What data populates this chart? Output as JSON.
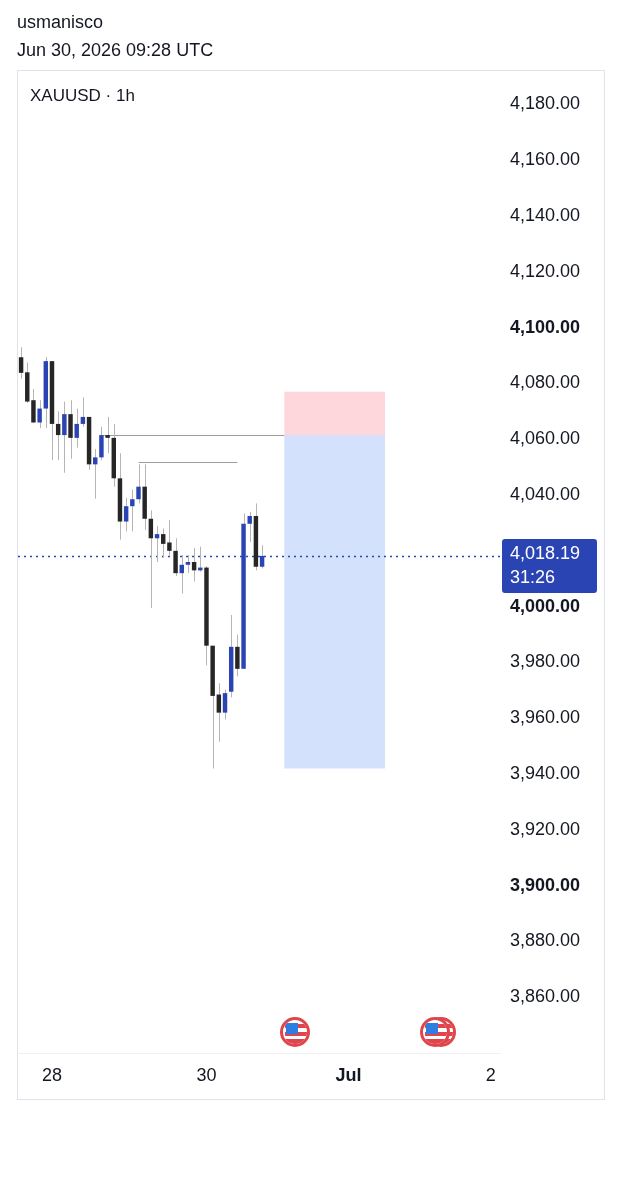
{
  "chart_data": {
    "type": "candlestick",
    "title": "XAUUSD · 1h",
    "annotations": [
      "usmanisco",
      "Jun 30, 2026 09:28 UTC",
      "31:26"
    ],
    "categories": [
      null,
      null,
      null,
      null,
      null,
      "28",
      null,
      null,
      null,
      null,
      null,
      null,
      null,
      null,
      null,
      null,
      null,
      null,
      null,
      null,
      null,
      null,
      null,
      null,
      null,
      null,
      null,
      null,
      null,
      null,
      "30",
      null,
      null,
      null,
      null,
      null,
      null,
      null,
      null,
      null,
      null,
      null,
      null,
      null,
      null,
      null,
      null,
      null,
      null,
      null,
      null,
      null,
      null,
      "Jul",
      null,
      null,
      null,
      null,
      null,
      null,
      null,
      null,
      null,
      null,
      null,
      null,
      null,
      null,
      null,
      null,
      null,
      null,
      null,
      null,
      null,
      null,
      "2",
      null
    ],
    "ohlc": [
      [
        4089.4,
        4093,
        4081.7,
        4083.8
      ],
      [
        4084,
        4087.5,
        4073,
        4073.5
      ],
      [
        4074,
        4078,
        4066,
        4066
      ],
      [
        4066,
        4074,
        4064,
        4071
      ],
      [
        4071,
        4089.5,
        4064,
        4088
      ],
      [
        4088,
        4088,
        4052.5,
        4065.5
      ],
      [
        4065.5,
        4070,
        4052.5,
        4061.5
      ],
      [
        4061.5,
        4073.5,
        4048,
        4069
      ],
      [
        4069,
        4074,
        4053,
        4060.5
      ],
      [
        4060.5,
        4071,
        4057,
        4065.5
      ],
      [
        4065.5,
        4075,
        4064.5,
        4068
      ],
      [
        4068,
        4068,
        4049,
        4051
      ],
      [
        4051,
        4056.5,
        4038.7,
        4053.5
      ],
      [
        4053.5,
        4064.5,
        4052.5,
        4061.5
      ],
      [
        4061.5,
        4068,
        4055,
        4060.5
      ],
      [
        4060.5,
        4065.5,
        4043,
        4046
      ],
      [
        4046,
        4055,
        4024,
        4030.5
      ],
      [
        4030.5,
        4039,
        4027,
        4036
      ],
      [
        4036,
        4042,
        4027,
        4038.5
      ],
      [
        4038.5,
        4051,
        4037,
        4043
      ],
      [
        4043,
        4051,
        4027.5,
        4031.5
      ],
      [
        4031.5,
        4034.5,
        3999.5,
        4024.5
      ],
      [
        4024.5,
        4029,
        4016,
        4026
      ],
      [
        4026,
        4028,
        4017.5,
        4022.5
      ],
      [
        4023,
        4031,
        4018.5,
        4020
      ],
      [
        4020,
        4024.5,
        4011,
        4012
      ],
      [
        4012,
        4018.5,
        4004.7,
        4015
      ],
      [
        4015,
        4018.5,
        4012,
        4016
      ],
      [
        4016,
        4021,
        4009,
        4013
      ],
      [
        4013,
        4021.5,
        4012.5,
        4014
      ],
      [
        4014,
        4014.5,
        3979,
        3986
      ],
      [
        3986,
        3986,
        3942,
        3968
      ],
      [
        3968.5,
        3972.5,
        3951.6,
        3962
      ],
      [
        3962,
        3970.3,
        3959.5,
        3969
      ],
      [
        3969.5,
        3997,
        3967.5,
        3985.6
      ],
      [
        3985.6,
        3990,
        3975,
        3977.7
      ],
      [
        3977.7,
        4033.4,
        3977.7,
        4029.7
      ],
      [
        4029.7,
        4034,
        4023.2,
        4032.5
      ],
      [
        4032.5,
        4037,
        4013,
        4014.3
      ],
      [
        4014.3,
        4022,
        4013.7,
        4018.19
      ],
      null,
      null,
      null,
      null,
      null,
      null,
      null,
      null,
      null,
      null,
      null,
      null,
      null,
      null,
      null,
      null,
      null,
      null,
      null,
      null,
      null,
      null,
      null,
      null,
      null,
      null,
      null,
      null,
      null,
      null,
      null,
      null,
      null,
      null,
      null,
      null,
      null,
      null
    ],
    "colors": [
      "#262626",
      "#262626",
      "#262626",
      "#2b44b3",
      "#2b44b3",
      "#262626",
      "#262626",
      "#2b44b3",
      "#262626",
      "#2b44b3",
      "#2b44b3",
      "#262626",
      "#2b44b3",
      "#2b44b3",
      "#262626",
      "#262626",
      "#262626",
      "#2b44b3",
      "#2b44b3",
      "#2b44b3",
      "#262626",
      "#262626",
      "#2b44b3",
      "#262626",
      "#262626",
      "#262626",
      "#2b44b3",
      "#2b44b3",
      "#262626",
      "#2b44b3",
      "#262626",
      "#262626",
      "#262626",
      "#2b44b3",
      "#2b44b3",
      "#262626",
      "#2b44b3",
      "#2b44b3",
      "#262626",
      "#2b44b3",
      null,
      null,
      null,
      null,
      null,
      null,
      null,
      null,
      null,
      null,
      null,
      null,
      null,
      null,
      null,
      null,
      null,
      null,
      null,
      null,
      null,
      null,
      null,
      null,
      null,
      null,
      null,
      null,
      null,
      null,
      null,
      null,
      null,
      null,
      null,
      null,
      null,
      null
    ],
    "ylim": [
      3840,
      4192
    ],
    "yticks": [
      {
        "value": 3860,
        "label": "3,860.00"
      },
      {
        "value": 3880,
        "label": "3,880.00"
      },
      {
        "value": 3900,
        "label": "3,900.00"
      },
      {
        "value": 3920,
        "label": "3,920.00"
      },
      {
        "value": 3940,
        "label": "3,940.00"
      },
      {
        "value": 3960,
        "label": "3,960.00"
      },
      {
        "value": 3980,
        "label": "3,980.00"
      },
      {
        "value": 4000,
        "label": "4,000.00"
      },
      {
        "value": 4040,
        "label": "4,040.00"
      },
      {
        "value": 4060,
        "label": "4,060.00"
      },
      {
        "value": 4080,
        "label": "4,080.00"
      },
      {
        "value": 4100,
        "label": "4,100.00"
      },
      {
        "value": 4120,
        "label": "4,120.00"
      },
      {
        "value": 4140,
        "label": "4,140.00"
      },
      {
        "value": 4160,
        "label": "4,160.00"
      },
      {
        "value": 4180,
        "label": "4,180.00"
      }
    ],
    "bands": [
      {
        "axis": "y",
        "from": 4061.5,
        "to": 4077,
        "color": "#fdd7db"
      },
      {
        "axis": "y",
        "from": 3942,
        "to": 4061.5,
        "color": "#d3e1fd"
      }
    ],
    "ref_lines": [
      {
        "axis": "y",
        "value": 4061.5,
        "color": "#9e9e9e",
        "line_style": "solid"
      },
      {
        "axis": "y",
        "value": 4052,
        "color": "#9e9e9e",
        "line_style": "solid"
      },
      {
        "axis": "y",
        "value": 4018.19,
        "label": "4,018.19",
        "color": "#2b44b3",
        "line_style": "dotted"
      }
    ],
    "grid": false,
    "legend": false
  }
}
